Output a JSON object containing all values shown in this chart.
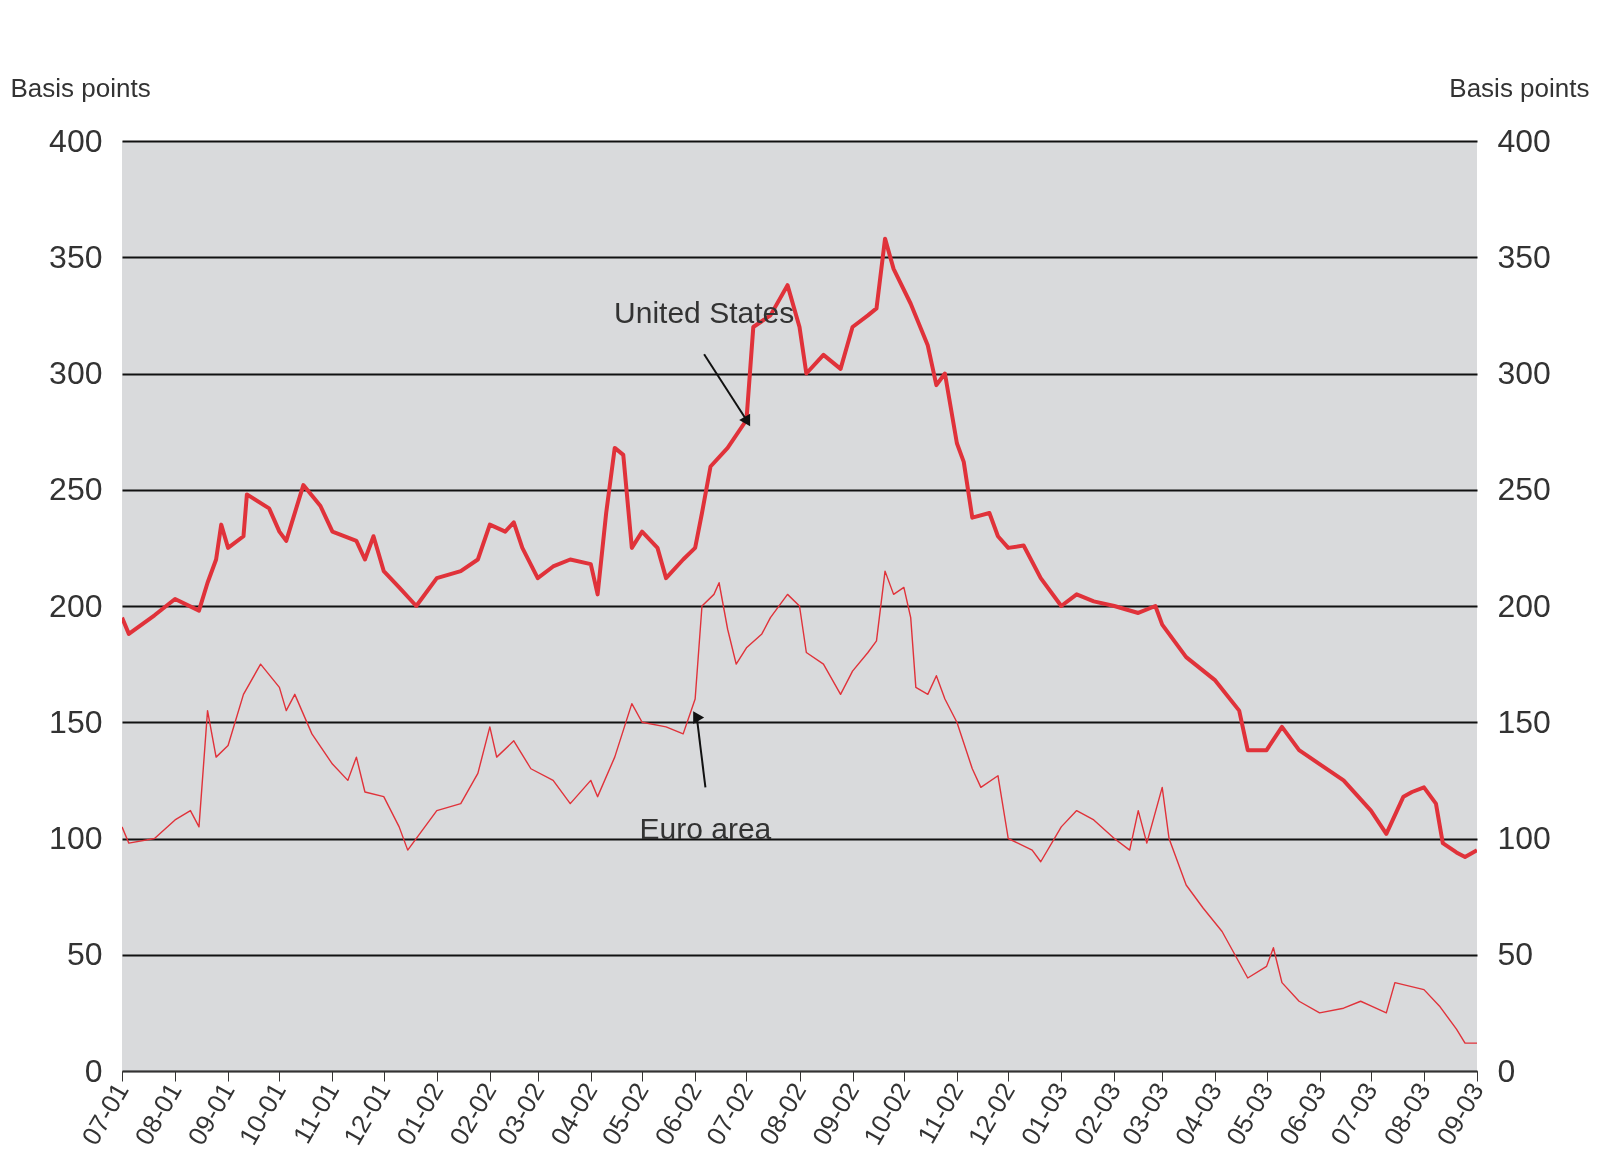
{
  "chart_data": {
    "type": "line",
    "ylabel": "Basis points",
    "y2label": "Basis points",
    "ylim": [
      0,
      400
    ],
    "yticks": [
      0,
      50,
      100,
      150,
      200,
      250,
      300,
      350,
      400
    ],
    "y2lim": [
      0,
      400
    ],
    "y2ticks": [
      0,
      50,
      100,
      150,
      200,
      250,
      300,
      350,
      400
    ],
    "xlim": [
      "2001-07-01",
      "2003-09-01"
    ],
    "xticks": [
      {
        "value": "2001-07-01",
        "label": "07-01"
      },
      {
        "value": "2001-08-01",
        "label": "08-01"
      },
      {
        "value": "2001-09-01",
        "label": "09-01"
      },
      {
        "value": "2001-10-01",
        "label": "10-01"
      },
      {
        "value": "2001-11-01",
        "label": "11-01"
      },
      {
        "value": "2001-12-01",
        "label": "12-01"
      },
      {
        "value": "2002-01-01",
        "label": "01-02"
      },
      {
        "value": "2002-02-01",
        "label": "02-02"
      },
      {
        "value": "2002-03-01",
        "label": "03-02"
      },
      {
        "value": "2002-04-01",
        "label": "04-02"
      },
      {
        "value": "2002-05-01",
        "label": "05-02"
      },
      {
        "value": "2002-06-01",
        "label": "06-02"
      },
      {
        "value": "2002-07-01",
        "label": "07-02"
      },
      {
        "value": "2002-08-01",
        "label": "08-02"
      },
      {
        "value": "2002-09-01",
        "label": "09-02"
      },
      {
        "value": "2002-10-01",
        "label": "10-02"
      },
      {
        "value": "2002-11-01",
        "label": "11-02"
      },
      {
        "value": "2002-12-01",
        "label": "12-02"
      },
      {
        "value": "2003-01-01",
        "label": "01-03"
      },
      {
        "value": "2003-02-01",
        "label": "02-03"
      },
      {
        "value": "2003-03-01",
        "label": "03-03"
      },
      {
        "value": "2003-04-01",
        "label": "04-03"
      },
      {
        "value": "2003-05-01",
        "label": "05-03"
      },
      {
        "value": "2003-06-01",
        "label": "06-03"
      },
      {
        "value": "2003-07-01",
        "label": "07-03"
      },
      {
        "value": "2003-08-01",
        "label": "08-03"
      },
      {
        "value": "2003-09-01",
        "label": "09-03"
      }
    ],
    "grid": "y",
    "legend": false,
    "marker": "none",
    "line_style": "solid",
    "annotations": [
      {
        "text": "United States",
        "x": "2002-07-01",
        "y": 280
      },
      {
        "text": "Euro area",
        "x": "2002-06-02",
        "y": 152
      }
    ],
    "series": [
      {
        "color": "#e0323a",
        "x": [
          "2001-07-01",
          "2001-07-05",
          "2001-07-20",
          "2001-08-01",
          "2001-08-15",
          "2001-08-20",
          "2001-08-25",
          "2001-08-28",
          "2001-09-01",
          "2001-09-10",
          "2001-09-12",
          "2001-09-25",
          "2001-10-01",
          "2001-10-05",
          "2001-10-15",
          "2001-10-25",
          "2001-11-01",
          "2001-11-15",
          "2001-11-20",
          "2001-11-25",
          "2001-12-01",
          "2001-12-10",
          "2001-12-20",
          "2002-01-01",
          "2002-01-15",
          "2002-01-25",
          "2002-02-01",
          "2002-02-10",
          "2002-02-15",
          "2002-02-20",
          "2002-03-01",
          "2002-03-10",
          "2002-03-20",
          "2002-04-01",
          "2002-04-05",
          "2002-04-10",
          "2002-04-15",
          "2002-04-20",
          "2002-04-25",
          "2002-05-01",
          "2002-05-10",
          "2002-05-15",
          "2002-05-25",
          "2002-06-01",
          "2002-06-05",
          "2002-06-10",
          "2002-06-20",
          "2002-07-01",
          "2002-07-05",
          "2002-07-15",
          "2002-07-25",
          "2002-08-01",
          "2002-08-05",
          "2002-08-15",
          "2002-08-25",
          "2002-09-01",
          "2002-09-10",
          "2002-09-15",
          "2002-09-20",
          "2002-09-25",
          "2002-10-05",
          "2002-10-15",
          "2002-10-20",
          "2002-10-25",
          "2002-11-01",
          "2002-11-05",
          "2002-11-10",
          "2002-11-20",
          "2002-11-25",
          "2002-12-01",
          "2002-12-10",
          "2002-12-20",
          "2003-01-01",
          "2003-01-10",
          "2003-01-20",
          "2003-02-01",
          "2003-02-15",
          "2003-02-25",
          "2003-03-01",
          "2003-03-15",
          "2003-04-01",
          "2003-04-15",
          "2003-04-20",
          "2003-05-01",
          "2003-05-10",
          "2003-05-20",
          "2003-06-01",
          "2003-06-15",
          "2003-07-01",
          "2003-07-10",
          "2003-07-20",
          "2003-07-25",
          "2003-08-01",
          "2003-08-08",
          "2003-08-12",
          "2003-08-20",
          "2003-08-25",
          "2003-09-01"
        ],
        "values": [
          195,
          188,
          196,
          203,
          198,
          210,
          220,
          235,
          225,
          230,
          248,
          242,
          232,
          228,
          252,
          243,
          232,
          228,
          220,
          230,
          215,
          208,
          200,
          212,
          215,
          220,
          235,
          232,
          236,
          225,
          212,
          217,
          220,
          218,
          205,
          240,
          268,
          265,
          225,
          232,
          225,
          212,
          220,
          225,
          240,
          260,
          268,
          280,
          320,
          325,
          338,
          320,
          300,
          308,
          302,
          320,
          325,
          328,
          358,
          345,
          330,
          312,
          295,
          300,
          270,
          262,
          238,
          240,
          230,
          225,
          226,
          212,
          200,
          205,
          202,
          200,
          197,
          200,
          192,
          178,
          168,
          155,
          138,
          138,
          148,
          138,
          132,
          125,
          112,
          102,
          118,
          120,
          122,
          115,
          98,
          94,
          92,
          95
        ]
      },
      {
        "color": "#e0323a",
        "x": [
          "2001-07-01",
          "2001-07-05",
          "2001-07-20",
          "2001-08-01",
          "2001-08-10",
          "2001-08-15",
          "2001-08-20",
          "2001-08-25",
          "2001-09-01",
          "2001-09-10",
          "2001-09-20",
          "2001-10-01",
          "2001-10-05",
          "2001-10-10",
          "2001-10-20",
          "2001-11-01",
          "2001-11-10",
          "2001-11-15",
          "2001-11-20",
          "2001-12-01",
          "2001-12-10",
          "2001-12-15",
          "2002-01-01",
          "2002-01-15",
          "2002-01-25",
          "2002-02-01",
          "2002-02-05",
          "2002-02-15",
          "2002-02-25",
          "2002-03-10",
          "2002-03-20",
          "2002-04-01",
          "2002-04-05",
          "2002-04-15",
          "2002-04-25",
          "2002-05-01",
          "2002-05-15",
          "2002-05-25",
          "2002-06-01",
          "2002-06-05",
          "2002-06-12",
          "2002-06-15",
          "2002-06-20",
          "2002-06-25",
          "2002-07-01",
          "2002-07-10",
          "2002-07-15",
          "2002-07-25",
          "2002-08-01",
          "2002-08-05",
          "2002-08-15",
          "2002-08-25",
          "2002-09-01",
          "2002-09-10",
          "2002-09-15",
          "2002-09-20",
          "2002-09-25",
          "2002-10-01",
          "2002-10-05",
          "2002-10-08",
          "2002-10-15",
          "2002-10-20",
          "2002-10-25",
          "2002-11-01",
          "2002-11-10",
          "2002-11-15",
          "2002-11-25",
          "2002-12-01",
          "2002-12-15",
          "2002-12-20",
          "2003-01-01",
          "2003-01-10",
          "2003-01-20",
          "2003-02-01",
          "2003-02-10",
          "2003-02-15",
          "2003-02-20",
          "2003-03-01",
          "2003-03-05",
          "2003-03-15",
          "2003-03-25",
          "2003-04-05",
          "2003-04-20",
          "2003-05-01",
          "2003-05-05",
          "2003-05-10",
          "2003-05-20",
          "2003-06-01",
          "2003-06-15",
          "2003-06-25",
          "2003-07-01",
          "2003-07-10",
          "2003-07-15",
          "2003-08-01",
          "2003-08-10",
          "2003-08-20",
          "2003-08-25",
          "2003-09-01"
        ],
        "values": [
          105,
          98,
          100,
          108,
          112,
          105,
          155,
          135,
          140,
          162,
          175,
          165,
          155,
          162,
          145,
          132,
          125,
          135,
          120,
          118,
          105,
          95,
          112,
          115,
          128,
          148,
          135,
          142,
          130,
          125,
          115,
          125,
          118,
          135,
          158,
          150,
          148,
          145,
          160,
          200,
          205,
          210,
          190,
          175,
          182,
          188,
          195,
          205,
          200,
          180,
          175,
          162,
          172,
          180,
          185,
          215,
          205,
          208,
          195,
          165,
          162,
          170,
          160,
          150,
          130,
          122,
          127,
          100,
          95,
          90,
          105,
          112,
          108,
          100,
          95,
          112,
          98,
          122,
          100,
          80,
          70,
          60,
          40,
          45,
          53,
          38,
          30,
          25,
          27,
          30,
          28,
          25,
          38,
          35,
          28,
          18,
          12,
          12
        ]
      }
    ]
  }
}
